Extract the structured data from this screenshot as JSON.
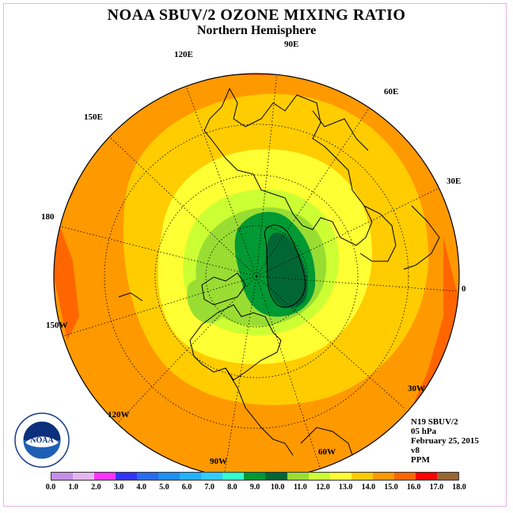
{
  "title": "NOAA SBUV/2 OZONE MIXING RATIO",
  "subtitle": "Northern Hemisphere",
  "longitude_labels": {
    "lon_90e": "90E",
    "lon_60e": "60E",
    "lon_30e": "30E",
    "lon_0": "0",
    "lon_30w": "30W",
    "lon_60w": "60W",
    "lon_90w": "90W",
    "lon_120w": "120W",
    "lon_150w": "150W",
    "lon_180": "180",
    "lon_150e": "150E",
    "lon_120e": "120E"
  },
  "info": {
    "satellite": "N19 SBUV/2",
    "level": "05 hPa",
    "date": "February 25, 2015",
    "version": "v8",
    "units": "PPM"
  },
  "logo": {
    "text": "NOAA",
    "ring_text": "NATIONAL OCEANIC AND ATMOSPHERIC ADMINISTRATION · U.S. DEPARTMENT OF COMMERCE"
  },
  "legend": {
    "ticks": [
      "0.0",
      "1.0",
      "2.0",
      "3.0",
      "4.0",
      "5.0",
      "6.0",
      "7.0",
      "8.0",
      "9.0",
      "10.0",
      "11.0",
      "12.0",
      "13.0",
      "14.0",
      "15.0",
      "16.0",
      "17.0",
      "18.0"
    ],
    "colors": [
      "#c58fe8",
      "#e2b7f0",
      "#ff33ff",
      "#3333ff",
      "#2a6cf0",
      "#1f8ff5",
      "#22b0ff",
      "#33ccff",
      "#33ffcc",
      "#009933",
      "#006633",
      "#99dd33",
      "#ccff33",
      "#ffff33",
      "#ffcc00",
      "#ff9900",
      "#ff6600",
      "#ff0000",
      "#996633"
    ]
  }
}
